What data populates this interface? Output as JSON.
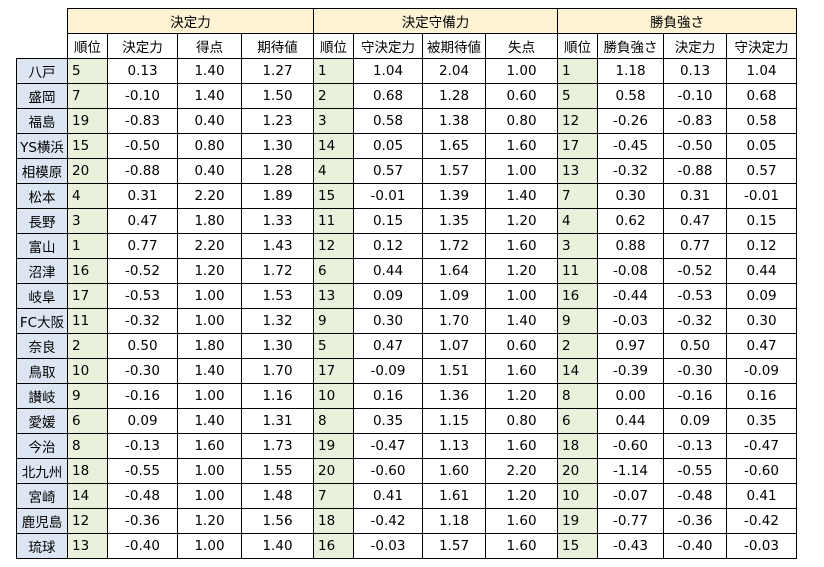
{
  "groups": [
    {
      "label": "決定力"
    },
    {
      "label": "決定守備力"
    },
    {
      "label": "勝負強さ"
    }
  ],
  "subheaders": [
    [
      "順位",
      "決定力",
      "得点",
      "期待値"
    ],
    [
      "順位",
      "守決定力",
      "被期待値",
      "失点"
    ],
    [
      "順位",
      "勝負強さ",
      "決定力",
      "守決定力"
    ]
  ],
  "rows": [
    {
      "team": "八戸",
      "a": [
        "5",
        "0.13",
        "1.40",
        "1.27"
      ],
      "b": [
        "1",
        "1.04",
        "2.04",
        "1.00"
      ],
      "c": [
        "1",
        "1.18",
        "0.13",
        "1.04"
      ]
    },
    {
      "team": "盛岡",
      "a": [
        "7",
        "-0.10",
        "1.40",
        "1.50"
      ],
      "b": [
        "2",
        "0.68",
        "1.28",
        "0.60"
      ],
      "c": [
        "5",
        "0.58",
        "-0.10",
        "0.68"
      ]
    },
    {
      "team": "福島",
      "a": [
        "19",
        "-0.83",
        "0.40",
        "1.23"
      ],
      "b": [
        "3",
        "0.58",
        "1.38",
        "0.80"
      ],
      "c": [
        "12",
        "-0.26",
        "-0.83",
        "0.58"
      ]
    },
    {
      "team": "YS横浜",
      "a": [
        "15",
        "-0.50",
        "0.80",
        "1.30"
      ],
      "b": [
        "14",
        "0.05",
        "1.65",
        "1.60"
      ],
      "c": [
        "17",
        "-0.45",
        "-0.50",
        "0.05"
      ]
    },
    {
      "team": "相模原",
      "a": [
        "20",
        "-0.88",
        "0.40",
        "1.28"
      ],
      "b": [
        "4",
        "0.57",
        "1.57",
        "1.00"
      ],
      "c": [
        "13",
        "-0.32",
        "-0.88",
        "0.57"
      ]
    },
    {
      "team": "松本",
      "a": [
        "4",
        "0.31",
        "2.20",
        "1.89"
      ],
      "b": [
        "15",
        "-0.01",
        "1.39",
        "1.40"
      ],
      "c": [
        "7",
        "0.30",
        "0.31",
        "-0.01"
      ]
    },
    {
      "team": "長野",
      "a": [
        "3",
        "0.47",
        "1.80",
        "1.33"
      ],
      "b": [
        "11",
        "0.15",
        "1.35",
        "1.20"
      ],
      "c": [
        "4",
        "0.62",
        "0.47",
        "0.15"
      ]
    },
    {
      "team": "富山",
      "a": [
        "1",
        "0.77",
        "2.20",
        "1.43"
      ],
      "b": [
        "12",
        "0.12",
        "1.72",
        "1.60"
      ],
      "c": [
        "3",
        "0.88",
        "0.77",
        "0.12"
      ]
    },
    {
      "team": "沼津",
      "a": [
        "16",
        "-0.52",
        "1.20",
        "1.72"
      ],
      "b": [
        "6",
        "0.44",
        "1.64",
        "1.20"
      ],
      "c": [
        "11",
        "-0.08",
        "-0.52",
        "0.44"
      ]
    },
    {
      "team": "岐阜",
      "a": [
        "17",
        "-0.53",
        "1.00",
        "1.53"
      ],
      "b": [
        "13",
        "0.09",
        "1.09",
        "1.00"
      ],
      "c": [
        "16",
        "-0.44",
        "-0.53",
        "0.09"
      ]
    },
    {
      "team": "FC大阪",
      "a": [
        "11",
        "-0.32",
        "1.00",
        "1.32"
      ],
      "b": [
        "9",
        "0.30",
        "1.70",
        "1.40"
      ],
      "c": [
        "9",
        "-0.03",
        "-0.32",
        "0.30"
      ]
    },
    {
      "team": "奈良",
      "a": [
        "2",
        "0.50",
        "1.80",
        "1.30"
      ],
      "b": [
        "5",
        "0.47",
        "1.07",
        "0.60"
      ],
      "c": [
        "2",
        "0.97",
        "0.50",
        "0.47"
      ]
    },
    {
      "team": "鳥取",
      "a": [
        "10",
        "-0.30",
        "1.40",
        "1.70"
      ],
      "b": [
        "17",
        "-0.09",
        "1.51",
        "1.60"
      ],
      "c": [
        "14",
        "-0.39",
        "-0.30",
        "-0.09"
      ]
    },
    {
      "team": "讃岐",
      "a": [
        "9",
        "-0.16",
        "1.00",
        "1.16"
      ],
      "b": [
        "10",
        "0.16",
        "1.36",
        "1.20"
      ],
      "c": [
        "8",
        "0.00",
        "-0.16",
        "0.16"
      ]
    },
    {
      "team": "愛媛",
      "a": [
        "6",
        "0.09",
        "1.40",
        "1.31"
      ],
      "b": [
        "8",
        "0.35",
        "1.15",
        "0.80"
      ],
      "c": [
        "6",
        "0.44",
        "0.09",
        "0.35"
      ]
    },
    {
      "team": "今治",
      "a": [
        "8",
        "-0.13",
        "1.60",
        "1.73"
      ],
      "b": [
        "19",
        "-0.47",
        "1.13",
        "1.60"
      ],
      "c": [
        "18",
        "-0.60",
        "-0.13",
        "-0.47"
      ]
    },
    {
      "team": "北九州",
      "a": [
        "18",
        "-0.55",
        "1.00",
        "1.55"
      ],
      "b": [
        "20",
        "-0.60",
        "1.60",
        "2.20"
      ],
      "c": [
        "20",
        "-1.14",
        "-0.55",
        "-0.60"
      ]
    },
    {
      "team": "宮崎",
      "a": [
        "14",
        "-0.48",
        "1.00",
        "1.48"
      ],
      "b": [
        "7",
        "0.41",
        "1.61",
        "1.20"
      ],
      "c": [
        "10",
        "-0.07",
        "-0.48",
        "0.41"
      ]
    },
    {
      "team": "鹿児島",
      "a": [
        "12",
        "-0.36",
        "1.20",
        "1.56"
      ],
      "b": [
        "18",
        "-0.42",
        "1.18",
        "1.60"
      ],
      "c": [
        "19",
        "-0.77",
        "-0.36",
        "-0.42"
      ]
    },
    {
      "team": "琉球",
      "a": [
        "13",
        "-0.40",
        "1.00",
        "1.40"
      ],
      "b": [
        "16",
        "-0.03",
        "1.57",
        "1.60"
      ],
      "c": [
        "15",
        "-0.43",
        "-0.40",
        "-0.03"
      ]
    }
  ],
  "colors": {
    "group_header_bg": "#fdf3d3",
    "team_cell_bg": "#dce6f2",
    "rank_cell_bg": "#e9f1dc"
  }
}
